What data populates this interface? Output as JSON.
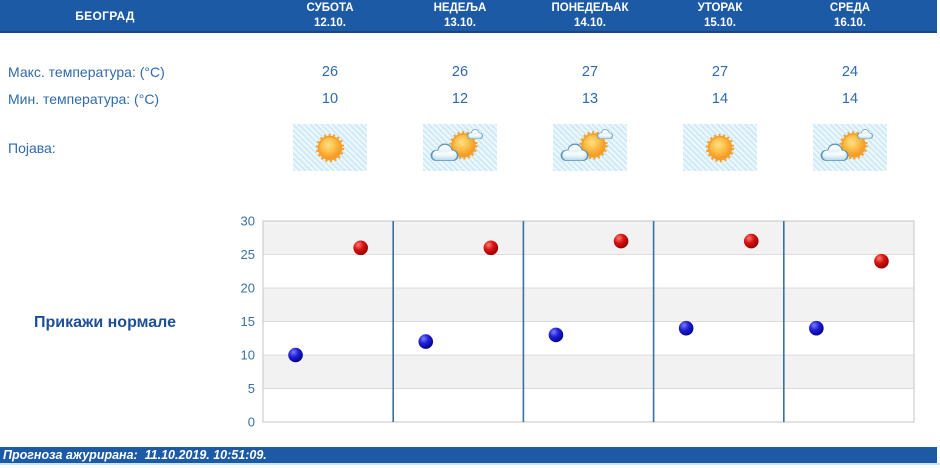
{
  "header": {
    "city": "БЕОГРАД",
    "days": [
      {
        "name": "СУБОТА",
        "date": "12.10."
      },
      {
        "name": "НЕДЕЉА",
        "date": "13.10."
      },
      {
        "name": "ПОНЕДЕЉАК",
        "date": "14.10."
      },
      {
        "name": "УТОРАК",
        "date": "15.10."
      },
      {
        "name": "СРЕДА",
        "date": "16.10."
      }
    ]
  },
  "table": {
    "max_label": "Макс. температура: (°C)",
    "min_label": "Мин. температура: (°C)",
    "appearance_label": "Појава:",
    "max_values": [
      "26",
      "26",
      "27",
      "27",
      "24"
    ],
    "min_values": [
      "10",
      "12",
      "13",
      "14",
      "14"
    ],
    "icons": [
      "sunny",
      "partly-cloudy",
      "partly-cloudy",
      "sunny",
      "partly-cloudy"
    ]
  },
  "normals_button_label": "Прикажи нормале",
  "footer": {
    "updated_text": "Прогноза ажурирана:  11.10.2019. 10:51:09."
  },
  "chart_data": {
    "type": "scatter",
    "categories": [
      "12.10.",
      "13.10.",
      "14.10.",
      "15.10.",
      "16.10."
    ],
    "series": [
      {
        "name": "Макс. температура",
        "dot": "red",
        "color": "#cc0000",
        "offset": 0.75,
        "values": [
          26,
          26,
          27,
          27,
          24
        ]
      },
      {
        "name": "Мин. температура",
        "dot": "blue",
        "color": "#0000cc",
        "offset": 0.25,
        "values": [
          10,
          12,
          13,
          14,
          14
        ]
      }
    ],
    "ylim": [
      0,
      30
    ],
    "yticks": [
      0,
      5,
      10,
      15,
      20,
      25,
      30
    ],
    "bands": [
      [
        25,
        30
      ],
      [
        15,
        20
      ],
      [
        5,
        10
      ]
    ],
    "band_fill": "#f2f2f2",
    "grid": true,
    "legend": "none",
    "separator_color": "#39719f",
    "tick_color": "#39719f"
  },
  "colors": {
    "bar_blue": "#1c5aa6",
    "text_blue": "#2e6aad",
    "normals_blue": "#1d4f96"
  }
}
